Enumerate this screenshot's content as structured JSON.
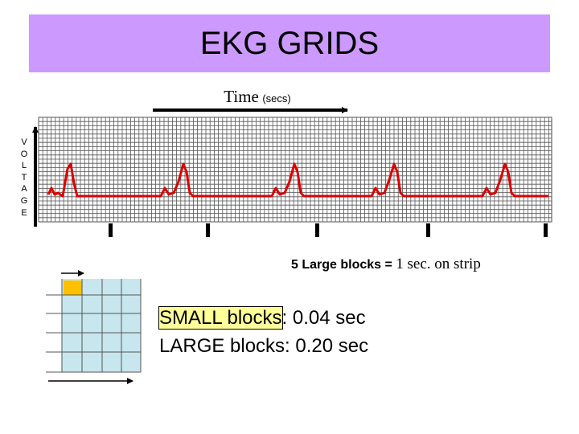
{
  "title": "EKG GRIDS",
  "time_axis": {
    "label": "Time",
    "unit": "(secs)"
  },
  "voltage_axis": {
    "letters": [
      "V",
      "O",
      "L",
      "T",
      "A",
      "G",
      "E"
    ]
  },
  "caption": {
    "part1": "5 Large blocks = ",
    "part2": "1 sec. on strip"
  },
  "legend": {
    "small_label": "SMALL blocks",
    "small_value": ": 0.04 sec",
    "large_text": "LARGE blocks: 0.20 sec"
  },
  "colors": {
    "banner": "#cc99ff",
    "grid_line": "#555555",
    "trace": "#dd0000",
    "cell_fill": "#c8e6ee",
    "highlight_cell": "#ffc000",
    "highlight_text": "#ffff99"
  }
}
